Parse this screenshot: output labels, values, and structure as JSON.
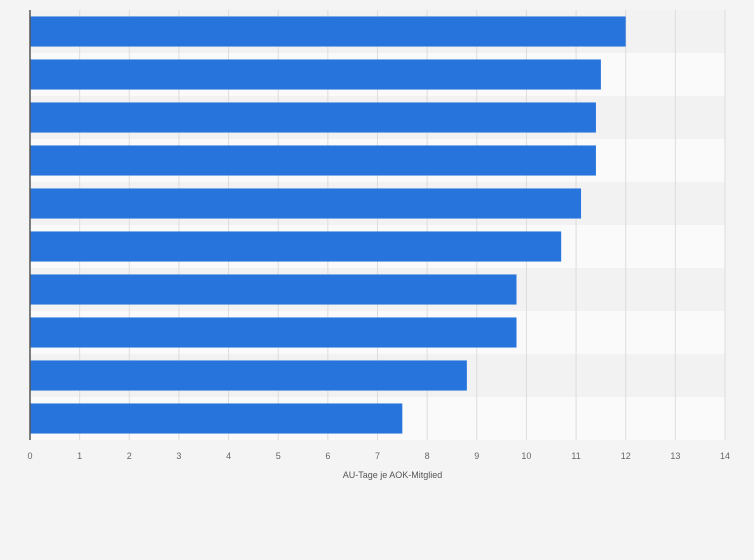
{
  "chart_data": {
    "type": "bar",
    "orientation": "horizontal",
    "title": "",
    "categories": [
      "",
      "",
      "",
      "",
      "",
      "",
      "",
      "",
      "",
      ""
    ],
    "values": [
      12.0,
      11.5,
      11.4,
      11.4,
      11.1,
      10.7,
      9.8,
      9.8,
      8.8,
      7.5
    ],
    "xlabel": "AU-Tage je AOK-Mitglied",
    "ylabel": "",
    "xlim": [
      0,
      14
    ],
    "xticks": [
      "0",
      "1",
      "2",
      "3",
      "4",
      "5",
      "6",
      "7",
      "8",
      "9",
      "10",
      "11",
      "12",
      "13",
      "14"
    ],
    "grid": true,
    "legend": "none",
    "colors": {
      "bar": "#2874dd",
      "background": "#f4f4f4",
      "band_light": "#fafafa",
      "band_dark": "#f2f2f2",
      "grid": "#dddddd",
      "axis": "#555555"
    }
  }
}
